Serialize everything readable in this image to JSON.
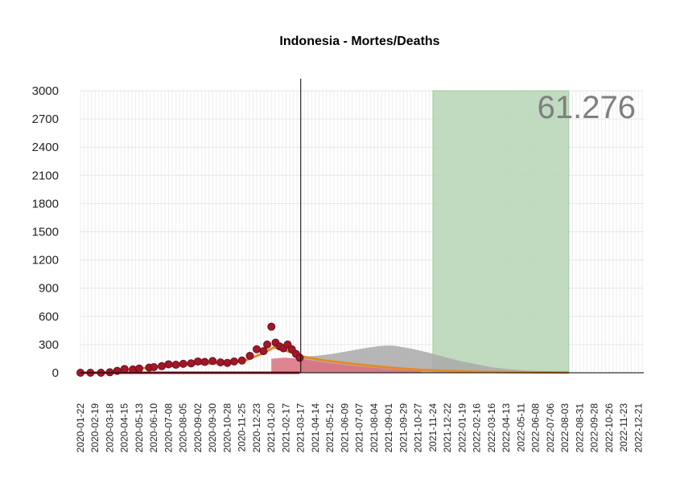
{
  "chart_data": {
    "type": "area",
    "title": "Indonesia - Mortes/Deaths",
    "xlabel": "",
    "ylabel": "",
    "ylim": [
      0,
      3000
    ],
    "y_ticks": [
      0,
      300,
      600,
      900,
      1200,
      1500,
      1800,
      2100,
      2400,
      2700,
      3000
    ],
    "x_range": [
      "2020-01-22",
      "2022-12-31"
    ],
    "x_tick_labels": [
      "2020-01-22",
      "2020-02-19",
      "2020-03-18",
      "2020-04-15",
      "2020-05-13",
      "2020-06-10",
      "2020-07-08",
      "2020-08-05",
      "2020-09-02",
      "2020-09-30",
      "2020-10-28",
      "2020-11-25",
      "2020-12-23",
      "2021-01-20",
      "2021-02-17",
      "2021-03-17",
      "2021-04-14",
      "2021-05-12",
      "2021-06-09",
      "2021-07-07",
      "2021-08-04",
      "2021-09-01",
      "2021-09-29",
      "2021-10-27",
      "2021-11-24",
      "2021-12-22",
      "2022-01-19",
      "2022-02-16",
      "2022-03-16",
      "2022-04-13",
      "2022-05-11",
      "2022-06-08",
      "2022-07-06",
      "2022-08-03",
      "2022-08-31",
      "2022-09-28",
      "2022-10-26",
      "2022-11-23",
      "2022-12-21"
    ],
    "grid": true,
    "today_line": "2021-03-17",
    "highlight_band": {
      "start": "2021-11-24",
      "end": "2022-08-10",
      "color": "#b9d7b8"
    },
    "total_label": "61.276",
    "observed_points": {
      "x": [
        "2020-01-22",
        "2020-02-10",
        "2020-03-01",
        "2020-03-18",
        "2020-04-01",
        "2020-04-15",
        "2020-05-01",
        "2020-05-13",
        "2020-06-01",
        "2020-06-10",
        "2020-06-25",
        "2020-07-08",
        "2020-07-22",
        "2020-08-05",
        "2020-08-20",
        "2020-09-02",
        "2020-09-15",
        "2020-09-30",
        "2020-10-15",
        "2020-10-28",
        "2020-11-10",
        "2020-11-25",
        "2020-12-10",
        "2020-12-23",
        "2021-01-05",
        "2021-01-12",
        "2021-01-20",
        "2021-01-28",
        "2021-02-05",
        "2021-02-12",
        "2021-02-20",
        "2021-02-28",
        "2021-03-08",
        "2021-03-15"
      ],
      "y": [
        0,
        0,
        0,
        5,
        20,
        40,
        35,
        45,
        55,
        60,
        70,
        90,
        85,
        95,
        100,
        120,
        115,
        125,
        110,
        105,
        120,
        130,
        180,
        250,
        230,
        300,
        490,
        320,
        280,
        260,
        300,
        250,
        200,
        160
      ]
    },
    "series": [
      {
        "name": "",
        "color": "#e38a2a",
        "x": [
          "2020-01-22",
          "2020-03-01",
          "2020-04-01",
          "2020-05-01",
          "2020-06-01",
          "2020-07-01",
          "2020-08-01",
          "2020-09-01",
          "2020-10-01",
          "2020-11-01",
          "2020-12-01",
          "2021-01-01",
          "2021-01-25",
          "2021-02-15",
          "2021-03-01",
          "2021-03-17",
          "2021-05-01",
          "2021-07-01",
          "2021-09-01",
          "2021-11-01",
          "2022-01-01",
          "2022-03-01",
          "2022-05-01",
          "2022-08-10"
        ],
        "y": [
          0,
          0,
          15,
          40,
          55,
          65,
          80,
          95,
          100,
          100,
          130,
          200,
          270,
          240,
          210,
          175,
          130,
          90,
          55,
          30,
          18,
          10,
          6,
          2
        ]
      },
      {
        "name": "",
        "color": "#a9a9a9",
        "x": [
          "2021-03-17",
          "2021-04-15",
          "2021-05-15",
          "2021-06-15",
          "2021-07-15",
          "2021-08-15",
          "2021-09-01",
          "2021-09-15",
          "2021-10-15",
          "2021-11-15",
          "2021-12-15",
          "2022-01-15",
          "2022-02-15",
          "2022-03-15",
          "2022-04-15",
          "2022-05-15",
          "2022-06-15",
          "2022-07-15",
          "2022-08-10"
        ],
        "y": [
          170,
          180,
          200,
          230,
          260,
          285,
          290,
          285,
          255,
          215,
          170,
          125,
          90,
          60,
          40,
          25,
          15,
          8,
          3
        ]
      },
      {
        "name": "",
        "color": "#d9707e",
        "x": [
          "2021-01-20",
          "2021-02-15",
          "2021-03-17",
          "2021-05-01",
          "2021-07-01",
          "2021-09-01",
          "2021-11-01"
        ],
        "y": [
          150,
          160,
          150,
          110,
          70,
          40,
          20
        ]
      }
    ]
  }
}
